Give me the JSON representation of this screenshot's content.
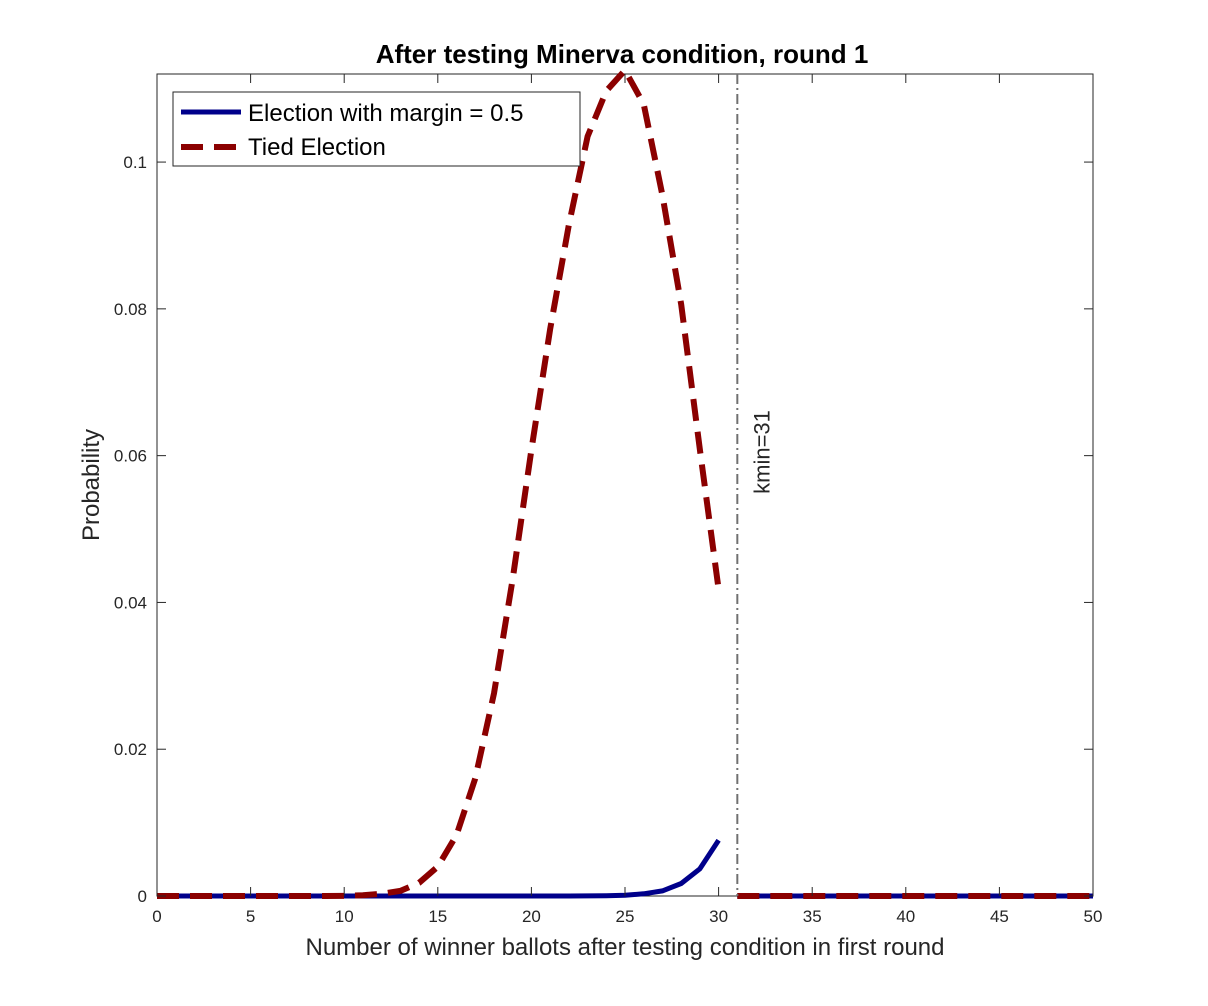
{
  "chart_data": {
    "type": "line",
    "title": "After testing Minerva condition, round 1",
    "xlabel": "Number of winner ballots after testing condition in first round",
    "ylabel": "Probability",
    "xlim": [
      0,
      50
    ],
    "ylim": [
      0,
      0.112
    ],
    "xticks": [
      0,
      5,
      10,
      15,
      20,
      25,
      30,
      35,
      40,
      45,
      50
    ],
    "xtick_labels": [
      "0",
      "5",
      "10",
      "15",
      "20",
      "25",
      "30",
      "35",
      "40",
      "45",
      "50"
    ],
    "yticks": [
      0,
      0.02,
      0.04,
      0.06,
      0.08,
      0.1
    ],
    "ytick_labels": [
      "0",
      "0.02",
      "0.04",
      "0.06",
      "0.08",
      "0.1"
    ],
    "grid": false,
    "legend_position": "top-left",
    "series": [
      {
        "name": "Election with margin = 0.5",
        "color": "#00008b",
        "style": "solid",
        "segments": [
          {
            "x": [
              0,
              1,
              2,
              3,
              4,
              5,
              6,
              7,
              8,
              9,
              10,
              11,
              12,
              13,
              14,
              15,
              16,
              17,
              18,
              19,
              20,
              21,
              22,
              23,
              24,
              25,
              26,
              27,
              28,
              29,
              30
            ],
            "y": [
              0,
              0,
              0,
              0,
              0,
              0,
              0,
              0,
              0,
              0,
              0,
              0,
              0,
              0,
              0,
              0,
              0,
              0,
              0,
              0,
              0,
              0,
              0,
              1e-05,
              3e-05,
              0.0001,
              0.0003,
              0.0007,
              0.0017,
              0.0037,
              0.0076
            ]
          },
          {
            "x": [
              31,
              32,
              33,
              34,
              35,
              36,
              37,
              38,
              39,
              40,
              41,
              42,
              43,
              44,
              45,
              46,
              47,
              48,
              49,
              50
            ],
            "y": [
              0,
              0,
              0,
              0,
              0,
              0,
              0,
              0,
              0,
              0,
              0,
              0,
              0,
              0,
              0,
              0,
              0,
              0,
              0,
              0
            ]
          }
        ]
      },
      {
        "name": "Tied Election",
        "color": "#8b0000",
        "style": "dashed",
        "segments": [
          {
            "x": [
              0,
              1,
              2,
              3,
              4,
              5,
              6,
              7,
              8,
              9,
              10,
              11,
              12,
              13,
              14,
              15,
              16,
              17,
              18,
              19,
              20,
              21,
              22,
              23,
              24,
              25,
              26,
              27,
              28,
              29,
              30
            ],
            "y": [
              0,
              0,
              0,
              0,
              0,
              0,
              0,
              0,
              0,
              0,
              2e-05,
              0.0001,
              0.0003,
              0.0007,
              0.0018,
              0.004,
              0.0083,
              0.016,
              0.0276,
              0.0432,
              0.0608,
              0.0772,
              0.0914,
              0.1035,
              0.1097,
              0.1125,
              0.1079,
              0.0955,
              0.0806,
              0.0608,
              0.0418
            ]
          },
          {
            "x": [
              31,
              32,
              33,
              34,
              35,
              36,
              37,
              38,
              39,
              40,
              41,
              42,
              43,
              44,
              45,
              46,
              47,
              48,
              49,
              50
            ],
            "y": [
              0,
              0,
              0,
              0,
              0,
              0,
              0,
              0,
              0,
              0,
              0,
              0,
              0,
              0,
              0,
              0,
              0,
              0,
              0,
              0
            ]
          }
        ]
      }
    ],
    "annotations": [
      {
        "type": "vline",
        "x": 31,
        "style": "dashdot",
        "color": "#707070",
        "label": "kmin=31"
      }
    ]
  }
}
